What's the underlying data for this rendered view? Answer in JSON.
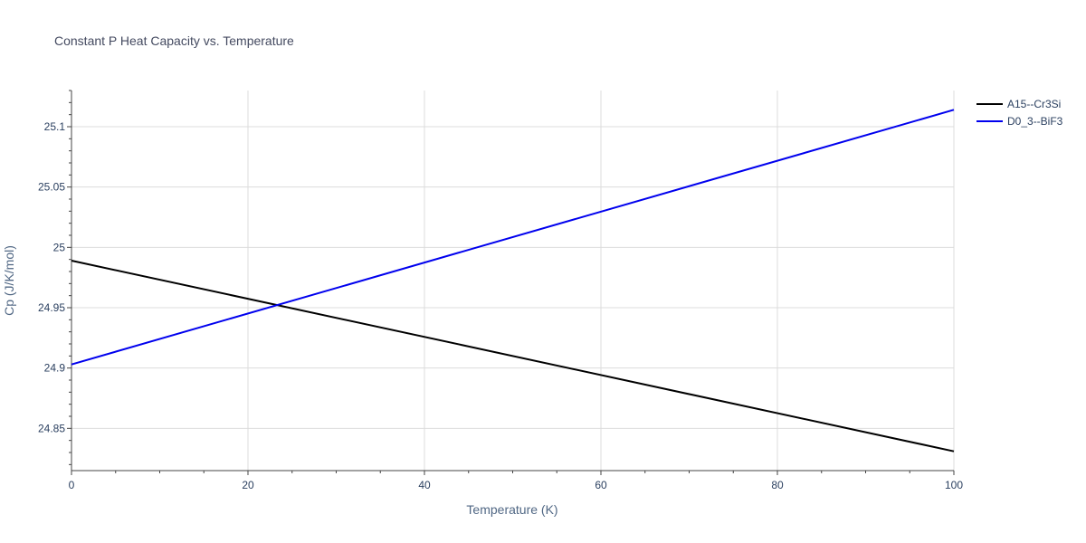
{
  "chart_data": {
    "type": "line",
    "title": "Constant P Heat Capacity vs. Temperature",
    "xlabel": "Temperature (K)",
    "ylabel": "Cp (J/K/mol)",
    "xlim": [
      0,
      100
    ],
    "ylim": [
      24.815,
      25.13
    ],
    "x_ticks": [
      0,
      20,
      40,
      60,
      80,
      100
    ],
    "x_tick_labels": [
      "0",
      "20",
      "40",
      "60",
      "80",
      "100"
    ],
    "y_ticks": [
      24.85,
      24.9,
      24.95,
      25.0,
      25.05,
      25.1
    ],
    "y_tick_labels": [
      "24.85",
      "24.9",
      "24.95",
      "25",
      "25.05",
      "25.1"
    ],
    "grid": true,
    "legend_position": "top-right",
    "series": [
      {
        "name": "A15--Cr3Si",
        "color": "#000000",
        "x": [
          0,
          100
        ],
        "y": [
          24.989,
          24.831
        ]
      },
      {
        "name": "D0_3--BiF3",
        "color": "#0000ee",
        "x": [
          0,
          100
        ],
        "y": [
          24.903,
          25.114
        ]
      }
    ]
  }
}
